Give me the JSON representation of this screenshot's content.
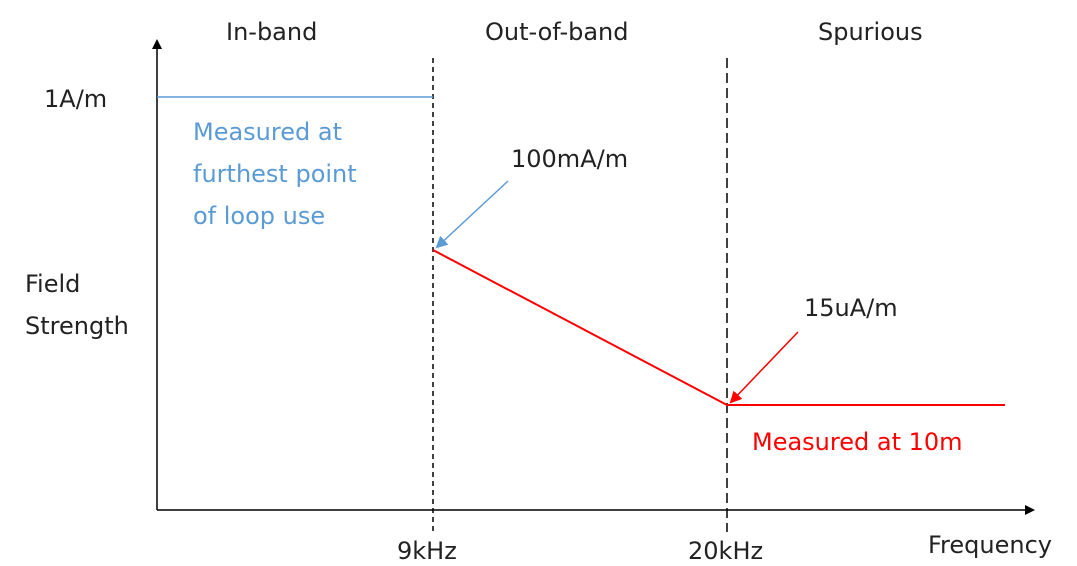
{
  "regions": [
    {
      "label": "In-band"
    },
    {
      "label": "Out-of-band"
    },
    {
      "label": "Spurious"
    }
  ],
  "y_axis": {
    "title_lines": [
      "Field",
      "Strength"
    ],
    "tick_label": "1A/m"
  },
  "x_axis": {
    "title": "Frequency",
    "tick_labels": [
      "9kHz",
      "20kHz"
    ]
  },
  "annotations": {
    "in_band_note_lines": [
      "Measured at",
      "furthest point",
      "of loop use"
    ],
    "out_of_band_start": "100mA/m",
    "spurious_level": "15uA/m",
    "spurious_note": "Measured at 10m"
  },
  "colors": {
    "axis": "#000000",
    "in_band_line": "#5b9bd5",
    "limit_line": "#ff0000",
    "text": "#222222"
  }
}
